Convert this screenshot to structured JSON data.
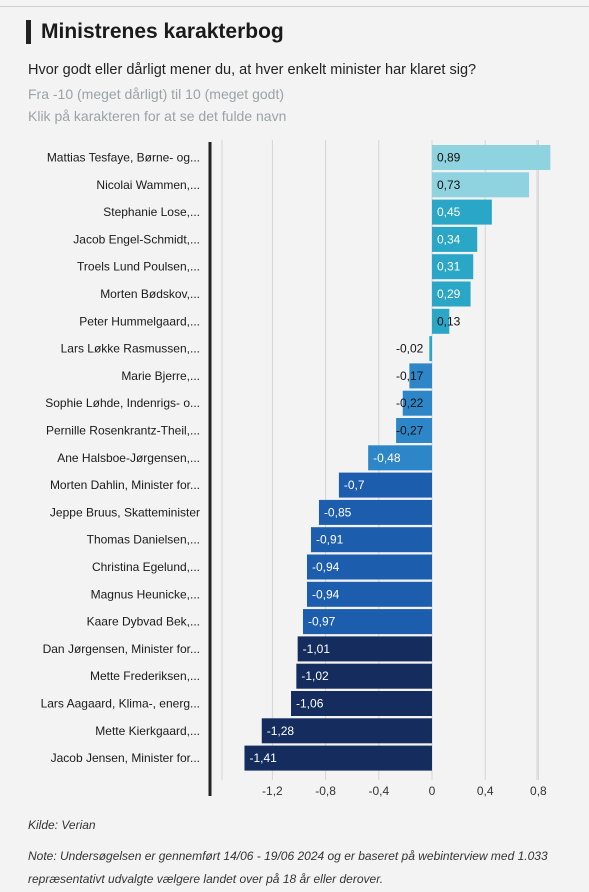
{
  "header": {
    "title": "Ministrenes karakterbog",
    "subtitle": "Hvor godt eller dårligt mener du, at hver enkelt minister har klaret sig?",
    "scale_note": "Fra -10 (meget dårligt) til 10 (meget godt)",
    "hint": "Klik på karakteren for at se det fulde navn"
  },
  "footer": {
    "source": "Kilde: Verian",
    "note": "Note: Undersøgelsen er gennemført 14/06 - 19/06 2024 og er baseret på webinterview med 1.033 repræsentativt udvalgte vælgere landet over på 18 år eller derover."
  },
  "chart_data": {
    "type": "bar",
    "orientation": "horizontal",
    "categories": [
      "Mattias Tesfaye, Børne- og...",
      "Nicolai Wammen,...",
      "Stephanie Lose,...",
      "Jacob Engel-Schmidt,...",
      "Troels Lund Poulsen,...",
      "Morten Bødskov,...",
      "Peter Hummelgaard,...",
      "Lars Løkke Rasmussen,...",
      "Marie Bjerre,...",
      "Sophie Løhde, Indenrigs- o...",
      "Pernille Rosenkrantz-Theil,...",
      "Ane Halsboe-Jørgensen,...",
      "Morten Dahlin, Minister for...",
      "Jeppe Bruus, Skatteminister",
      "Thomas Danielsen,...",
      "Christina Egelund,...",
      "Magnus Heunicke,...",
      "Kaare Dybvad Bek,...",
      "Dan Jørgensen, Minister for...",
      "Mette Frederiksen,...",
      "Lars Aagaard, Klima-, energ...",
      "Mette Kierkgaard,...",
      "Jacob Jensen, Minister for..."
    ],
    "values": [
      0.89,
      0.73,
      0.45,
      0.34,
      0.31,
      0.29,
      0.13,
      -0.02,
      -0.17,
      -0.22,
      -0.27,
      -0.48,
      -0.7,
      -0.85,
      -0.91,
      -0.94,
      -0.94,
      -0.97,
      -1.01,
      -1.02,
      -1.06,
      -1.28,
      -1.41
    ],
    "value_labels": [
      "0,89",
      "0,73",
      "0,45",
      "0,34",
      "0,31",
      "0,29",
      "0,13",
      "-0,02",
      "-0,17",
      "-0,22",
      "-0,27",
      "-0,48",
      "-0,7",
      "-0,85",
      "-0,91",
      "-0,94",
      "-0,94",
      "-0,97",
      "-1,01",
      "-1,02",
      "-1,06",
      "-1,28",
      "-1,41"
    ],
    "colors": [
      "#8fd3e0",
      "#8fd3e0",
      "#2aa6c6",
      "#2aa6c6",
      "#2aa6c6",
      "#2aa6c6",
      "#2aa6c6",
      "#2aa6c6",
      "#2d86c8",
      "#2d86c8",
      "#2d86c8",
      "#2d86c8",
      "#1d5dae",
      "#1d5dae",
      "#1d5dae",
      "#1d5dae",
      "#1d5dae",
      "#1d5dae",
      "#152c5e",
      "#152c5e",
      "#152c5e",
      "#152c5e",
      "#152c5e"
    ],
    "xlim": [
      -1.6,
      1.0
    ],
    "xticks": [
      -1.2,
      -0.8,
      -0.4,
      0,
      0.4,
      0.8
    ],
    "xtick_labels": [
      "-1,2",
      "-0,8",
      "-0,4",
      "0",
      "0,4",
      "0,8"
    ],
    "grid": true
  }
}
